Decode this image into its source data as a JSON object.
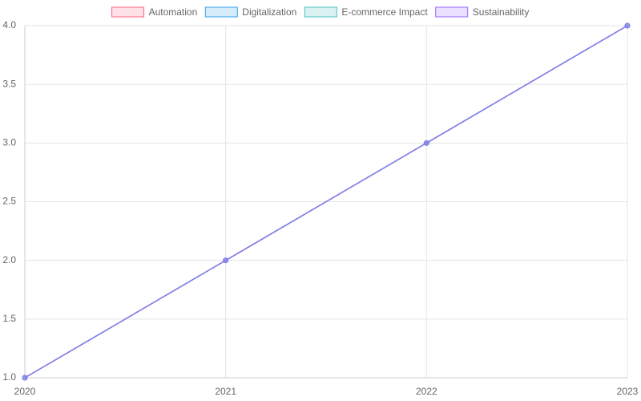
{
  "chart_data": {
    "type": "line",
    "categories": [
      "2020",
      "2021",
      "2022",
      "2023"
    ],
    "series": [
      {
        "name": "Automation",
        "color": "#ff6384",
        "values": [
          1,
          2,
          3,
          4
        ]
      },
      {
        "name": "Digitalization",
        "color": "#36a2eb",
        "values": [
          1,
          2,
          3,
          4
        ]
      },
      {
        "name": "E-commerce Impact",
        "color": "#4bc0c0",
        "values": [
          1,
          2,
          3,
          4
        ]
      },
      {
        "name": "Sustainability",
        "color": "#9966ff",
        "values": [
          1,
          2,
          3,
          4
        ]
      }
    ],
    "ylim": [
      1,
      4
    ],
    "yticks": [
      {
        "value": 1,
        "label": "1.0"
      },
      1.5,
      {
        "value": 2,
        "label": "2.0"
      },
      2.5,
      {
        "value": 3,
        "label": "3.0"
      },
      3.5,
      {
        "value": 4,
        "label": "4.0"
      }
    ],
    "grid": true,
    "legend": "top"
  }
}
